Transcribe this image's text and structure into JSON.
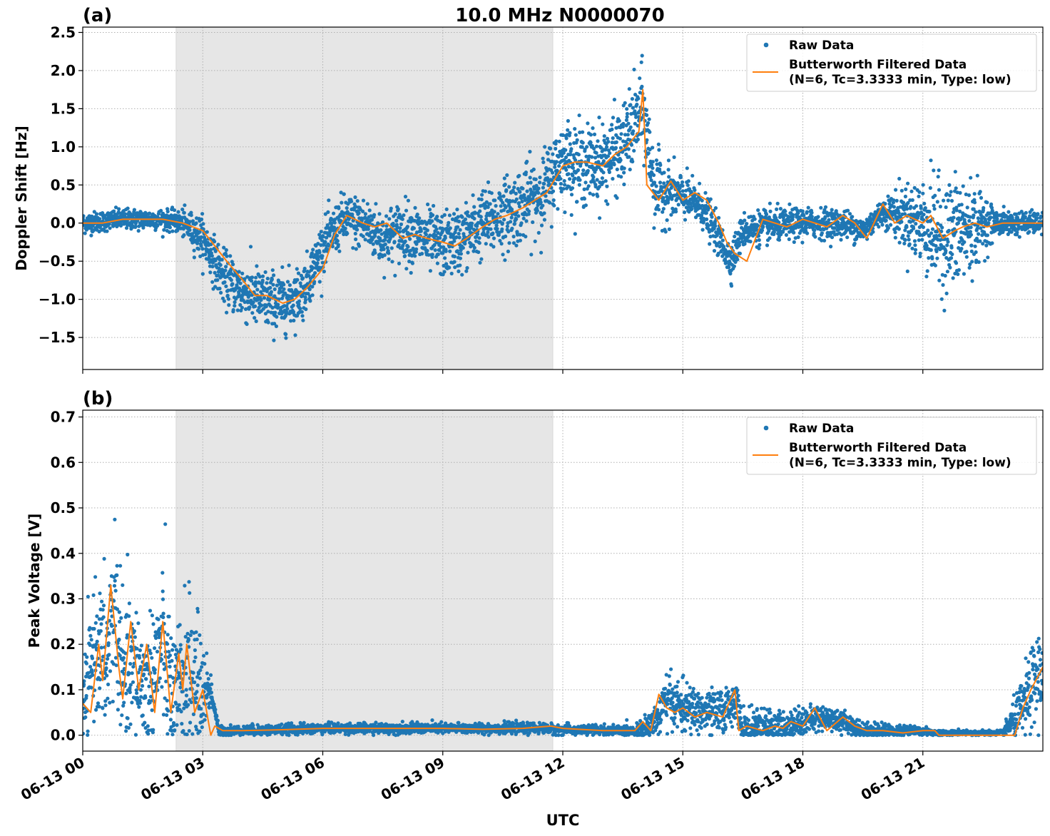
{
  "figure": {
    "title": "10.0 MHz N0000070",
    "xlabel": "UTC"
  },
  "colors": {
    "raw": "#1f77b4",
    "filtered": "#ff7f0e",
    "shade": "#e6e6e6",
    "grid": "#b0b0b0"
  },
  "chart_data": [
    {
      "type": "scatter",
      "panel_label": "(a)",
      "ylabel": "Doppler Shift [Hz]",
      "xlim": [
        "06-13 00:00",
        "06-14 00:00"
      ],
      "ylim": [
        -1.92,
        2.57
      ],
      "yticks": [
        -1.5,
        -1.0,
        -0.5,
        0.0,
        0.5,
        1.0,
        1.5,
        2.0,
        2.5
      ],
      "ytick_labels": [
        "−1.5",
        "−1.0",
        "−0.5",
        "0.0",
        "0.5",
        "1.0",
        "1.5",
        "2.0",
        "2.5"
      ],
      "xticks": [
        "06-13 00",
        "06-13 03",
        "06-13 06",
        "06-13 09",
        "06-13 12",
        "06-13 15",
        "06-13 18",
        "06-13 21"
      ],
      "shaded_region": [
        "06-13 02:20",
        "06-13 11:45"
      ],
      "grid": true,
      "legend_placement": "top-right",
      "series": [
        {
          "name": "Raw Data",
          "style": "points",
          "spread": [
            [
              0,
              0.12
            ],
            [
              2.3,
              0.12
            ],
            [
              3.0,
              0.25
            ],
            [
              4.0,
              0.35
            ],
            [
              5.0,
              0.35
            ],
            [
              6.0,
              0.28
            ],
            [
              8.0,
              0.35
            ],
            [
              10.0,
              0.4
            ],
            [
              11.5,
              0.45
            ],
            [
              13.0,
              0.45
            ],
            [
              14.0,
              0.5
            ],
            [
              15.0,
              0.25
            ],
            [
              16.5,
              0.2
            ],
            [
              20.0,
              0.15
            ],
            [
              21.2,
              0.6
            ],
            [
              22.0,
              0.7
            ],
            [
              22.8,
              0.15
            ],
            [
              24.0,
              0.12
            ]
          ],
          "x_hours": [
            0,
            1.0,
            2.0,
            2.5,
            3.0,
            3.5,
            4.0,
            4.5,
            5.0,
            5.5,
            6.0,
            6.5,
            7.0,
            7.5,
            8.0,
            8.5,
            9.0,
            9.5,
            10.0,
            10.5,
            11.0,
            11.5,
            12.0,
            12.5,
            13.0,
            13.5,
            13.8,
            14.0,
            14.3,
            14.6,
            15.0,
            15.5,
            16.0,
            16.2,
            16.5,
            17.0,
            18.0,
            19.0,
            19.5,
            20.0,
            20.5,
            21.0,
            21.5,
            22.0,
            22.5,
            23.0,
            24.0
          ],
          "y_center": [
            0.0,
            0.05,
            0.05,
            0.0,
            -0.2,
            -0.7,
            -0.9,
            -1.0,
            -1.05,
            -0.9,
            -0.3,
            0.05,
            0.0,
            -0.2,
            -0.1,
            -0.2,
            -0.3,
            -0.2,
            0.0,
            0.1,
            0.25,
            0.4,
            0.85,
            0.75,
            0.8,
            1.0,
            1.3,
            1.5,
            0.45,
            0.4,
            0.35,
            0.2,
            -0.3,
            -0.5,
            -0.1,
            -0.05,
            0.0,
            0.0,
            -0.1,
            0.15,
            0.1,
            0.0,
            -0.2,
            -0.1,
            0.0,
            0.0,
            0.0
          ]
        },
        {
          "name": "Butterworth Filtered Data\n(N=6, Tc=3.3333 min, Type: low)",
          "style": "line",
          "x_hours": [
            0,
            0.5,
            1.0,
            1.5,
            2.0,
            2.5,
            3.0,
            3.3,
            3.6,
            4.0,
            4.3,
            4.6,
            5.0,
            5.3,
            5.6,
            6.0,
            6.3,
            6.6,
            7.0,
            7.3,
            7.6,
            8.0,
            8.3,
            8.6,
            9.0,
            9.3,
            9.6,
            10.0,
            10.3,
            10.6,
            11.0,
            11.3,
            11.6,
            12.0,
            12.3,
            12.6,
            13.0,
            13.3,
            13.6,
            13.9,
            14.0,
            14.1,
            14.4,
            14.7,
            15.0,
            15.3,
            15.6,
            15.9,
            16.1,
            16.3,
            16.6,
            17.0,
            17.3,
            17.6,
            18.0,
            18.3,
            18.6,
            19.0,
            19.3,
            19.6,
            20.0,
            20.3,
            20.6,
            21.0,
            21.2,
            21.5,
            21.8,
            22.0,
            22.3,
            22.6,
            23.0,
            23.5,
            24.0
          ],
          "y": [
            0.0,
            0.0,
            0.05,
            0.05,
            0.05,
            0.0,
            -0.1,
            -0.3,
            -0.5,
            -0.75,
            -0.95,
            -0.95,
            -1.05,
            -1.0,
            -0.85,
            -0.6,
            -0.15,
            0.1,
            0.0,
            -0.05,
            0.0,
            -0.2,
            -0.15,
            -0.2,
            -0.25,
            -0.3,
            -0.2,
            -0.05,
            0.05,
            0.1,
            0.2,
            0.3,
            0.4,
            0.75,
            0.8,
            0.8,
            0.75,
            0.9,
            1.0,
            1.2,
            1.75,
            0.5,
            0.3,
            0.55,
            0.3,
            0.4,
            0.3,
            0.0,
            -0.25,
            -0.4,
            -0.5,
            0.05,
            0.0,
            -0.05,
            0.05,
            0.0,
            -0.05,
            0.1,
            0.0,
            -0.2,
            0.25,
            0.0,
            0.1,
            0.0,
            0.1,
            -0.2,
            -0.1,
            -0.05,
            0.0,
            -0.05,
            0.0,
            0.0,
            0.0
          ]
        }
      ]
    },
    {
      "type": "scatter",
      "panel_label": "(b)",
      "ylabel": "Peak Voltage [V]",
      "xlim": [
        "06-13 00:00",
        "06-14 00:00"
      ],
      "ylim": [
        -0.035,
        0.715
      ],
      "yticks": [
        0.0,
        0.1,
        0.2,
        0.3,
        0.4,
        0.5,
        0.6,
        0.7
      ],
      "ytick_labels": [
        "0.0",
        "0.1",
        "0.2",
        "0.3",
        "0.4",
        "0.5",
        "0.6",
        "0.7"
      ],
      "xticks": [
        "06-13 00",
        "06-13 03",
        "06-13 06",
        "06-13 09",
        "06-13 12",
        "06-13 15",
        "06-13 18",
        "06-13 21"
      ],
      "shaded_region": [
        "06-13 02:20",
        "06-13 11:45"
      ],
      "grid": true,
      "legend_placement": "top-right",
      "series": [
        {
          "name": "Raw Data",
          "style": "points",
          "spread": [
            [
              0,
              0.08
            ],
            [
              0.8,
              0.18
            ],
            [
              1.5,
              0.12
            ],
            [
              2.0,
              0.15
            ],
            [
              2.8,
              0.15
            ],
            [
              3.3,
              0.01
            ],
            [
              13.8,
              0.01
            ],
            [
              14.5,
              0.05
            ],
            [
              16.5,
              0.04
            ],
            [
              19.0,
              0.02
            ],
            [
              21.5,
              0.005
            ],
            [
              23.0,
              0.005
            ],
            [
              23.6,
              0.07
            ],
            [
              24.0,
              0.1
            ]
          ],
          "x_hours": [
            0,
            0.3,
            0.6,
            0.8,
            1.0,
            1.3,
            1.6,
            2.0,
            2.3,
            2.6,
            2.9,
            3.2,
            3.4,
            4.0,
            6.0,
            8.0,
            10.0,
            11.5,
            12.0,
            13.5,
            14.0,
            14.4,
            14.6,
            15.0,
            15.5,
            16.0,
            16.3,
            16.5,
            17.0,
            17.5,
            18.0,
            18.5,
            19.0,
            19.5,
            20.0,
            21.0,
            21.3,
            22.0,
            23.0,
            23.5,
            24.0
          ],
          "y_center": [
            0.05,
            0.2,
            0.15,
            0.3,
            0.1,
            0.15,
            0.1,
            0.2,
            0.05,
            0.15,
            0.1,
            0.1,
            0.01,
            0.01,
            0.015,
            0.015,
            0.015,
            0.015,
            0.012,
            0.01,
            0.01,
            0.04,
            0.08,
            0.06,
            0.05,
            0.05,
            0.08,
            0.01,
            0.015,
            0.02,
            0.03,
            0.04,
            0.03,
            0.01,
            0.01,
            0.01,
            0.005,
            0.005,
            0.005,
            0.06,
            0.15
          ]
        },
        {
          "name": "Butterworth Filtered Data\n(N=6, Tc=3.3333 min, Type: low)",
          "style": "line",
          "x_hours": [
            0,
            0.2,
            0.4,
            0.5,
            0.7,
            0.9,
            1.0,
            1.2,
            1.4,
            1.6,
            1.8,
            2.0,
            2.2,
            2.4,
            2.5,
            2.6,
            2.8,
            3.0,
            3.2,
            3.3,
            3.5,
            4.0,
            5.0,
            6.0,
            7.0,
            8.0,
            9.0,
            10.0,
            11.0,
            11.7,
            12.0,
            13.0,
            13.8,
            14.0,
            14.2,
            14.4,
            14.6,
            14.8,
            15.0,
            15.3,
            15.6,
            16.0,
            16.3,
            16.4,
            16.6,
            17.0,
            17.3,
            17.5,
            17.7,
            18.0,
            18.3,
            18.6,
            19.0,
            19.3,
            19.6,
            20.0,
            20.5,
            21.0,
            21.3,
            21.4,
            22.0,
            23.0,
            23.3,
            23.5,
            23.7,
            24.0
          ],
          "y": [
            0.07,
            0.05,
            0.2,
            0.12,
            0.33,
            0.15,
            0.08,
            0.25,
            0.1,
            0.2,
            0.05,
            0.25,
            0.05,
            0.18,
            0.1,
            0.2,
            0.05,
            0.1,
            0.0,
            0.02,
            0.01,
            0.01,
            0.012,
            0.015,
            0.015,
            0.015,
            0.015,
            0.013,
            0.015,
            0.02,
            0.015,
            0.01,
            0.01,
            0.03,
            0.01,
            0.09,
            0.06,
            0.05,
            0.06,
            0.04,
            0.05,
            0.04,
            0.1,
            0.01,
            0.02,
            0.01,
            0.02,
            0.015,
            0.03,
            0.02,
            0.06,
            0.01,
            0.04,
            0.02,
            0.01,
            0.01,
            0.005,
            0.01,
            0.01,
            0.0,
            0.0,
            0.0,
            0.0,
            0.06,
            0.1,
            0.15
          ]
        }
      ]
    }
  ]
}
